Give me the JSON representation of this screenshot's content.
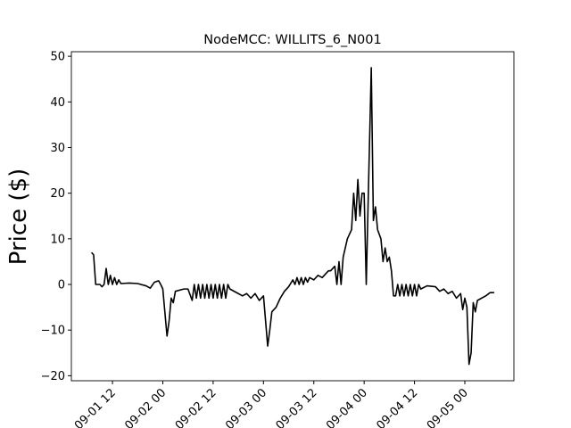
{
  "chart_data": {
    "type": "line",
    "title": "NodeMCC: WILLITS_6_N001",
    "y_label": "Price ($)",
    "color": "#000000",
    "x": [
      7,
      7.5,
      8,
      9,
      9.5,
      10,
      10.5,
      11,
      11.5,
      12,
      12.5,
      13,
      13.5,
      14,
      16,
      18,
      20,
      21,
      22,
      23,
      23.5,
      24,
      25,
      25.5,
      26,
      26.5,
      27,
      29,
      30,
      31,
      31.5,
      32,
      32.5,
      33,
      33.5,
      34,
      34.5,
      35,
      35.5,
      36,
      36.5,
      37,
      37.5,
      38,
      38.5,
      39,
      39.5,
      40,
      42,
      43,
      44,
      45,
      46,
      47,
      48,
      49,
      49.5,
      50,
      51,
      52,
      53,
      54,
      55,
      55.5,
      56,
      56.5,
      57,
      57.5,
      58,
      58.5,
      59,
      60,
      61,
      62,
      63,
      63.5,
      64,
      65,
      65.5,
      66,
      66.5,
      67,
      68,
      69,
      69.5,
      70,
      70.5,
      71,
      71.5,
      72,
      72.5,
      73,
      73.7,
      74.2,
      74.7,
      75.2,
      76,
      76.5,
      77,
      77.5,
      78,
      78.5,
      79,
      79.5,
      80,
      80.5,
      81,
      81.5,
      82,
      82.5,
      83,
      83.5,
      84,
      84.5,
      85,
      85.5,
      87,
      89,
      90,
      91,
      92,
      93,
      94,
      95,
      95.5,
      96,
      96.5,
      97,
      97.5,
      98,
      98.5,
      99,
      100,
      101,
      102,
      103
    ],
    "values": [
      7,
      6.5,
      0,
      0,
      -0.5,
      0,
      3.5,
      0,
      2,
      0,
      1.5,
      0,
      1,
      0.2,
      0.3,
      0.2,
      -0.3,
      -0.8,
      0.5,
      0.8,
      0,
      -1,
      -11.3,
      -8,
      -3,
      -4,
      -1.5,
      -1,
      -1,
      -3.5,
      0,
      -3,
      0,
      -3,
      0,
      -3,
      0,
      -3,
      0,
      -3,
      0,
      -3,
      0,
      -3,
      0,
      -3,
      0,
      -1,
      -2,
      -2.5,
      -2,
      -3,
      -2,
      -3.5,
      -2.5,
      -13.5,
      -10,
      -6,
      -5,
      -3,
      -1.5,
      -0.5,
      1,
      0,
      1.5,
      0,
      1.5,
      0,
      1.5,
      0.5,
      1.5,
      1,
      2,
      1.5,
      2.5,
      3,
      3,
      4,
      0,
      5,
      0,
      6,
      10,
      12,
      20,
      14,
      23,
      15,
      20,
      20,
      0,
      20,
      47.5,
      14,
      17,
      12,
      10,
      5,
      8,
      5,
      6,
      3,
      -2.5,
      -2.5,
      0,
      -2.5,
      0,
      -2.5,
      0,
      -2.5,
      0,
      -2.5,
      0,
      -2.5,
      0,
      -1,
      -0.3,
      -0.5,
      -1.5,
      -1,
      -2,
      -1.5,
      -3,
      -2,
      -5.5,
      -3,
      -5,
      -17.5,
      -15,
      -4,
      -6,
      -3.5,
      -3,
      -2.5,
      -1.8,
      -1.8
    ],
    "xlim": [
      2.2,
      107.7
    ],
    "ylim": [
      -21.1,
      51.0
    ],
    "xticks": [
      {
        "value": 12,
        "label": "09-01 12"
      },
      {
        "value": 24,
        "label": "09-02 00"
      },
      {
        "value": 36,
        "label": "09-02 12"
      },
      {
        "value": 48,
        "label": "09-03 00"
      },
      {
        "value": 60,
        "label": "09-03 12"
      },
      {
        "value": 72,
        "label": "09-04 00"
      },
      {
        "value": 84,
        "label": "09-04 12"
      },
      {
        "value": 96,
        "label": "09-05 00"
      }
    ],
    "yticks": [
      {
        "value": -20,
        "label": "−20"
      },
      {
        "value": -10,
        "label": "−10"
      },
      0,
      10,
      20,
      30,
      40,
      50
    ]
  }
}
